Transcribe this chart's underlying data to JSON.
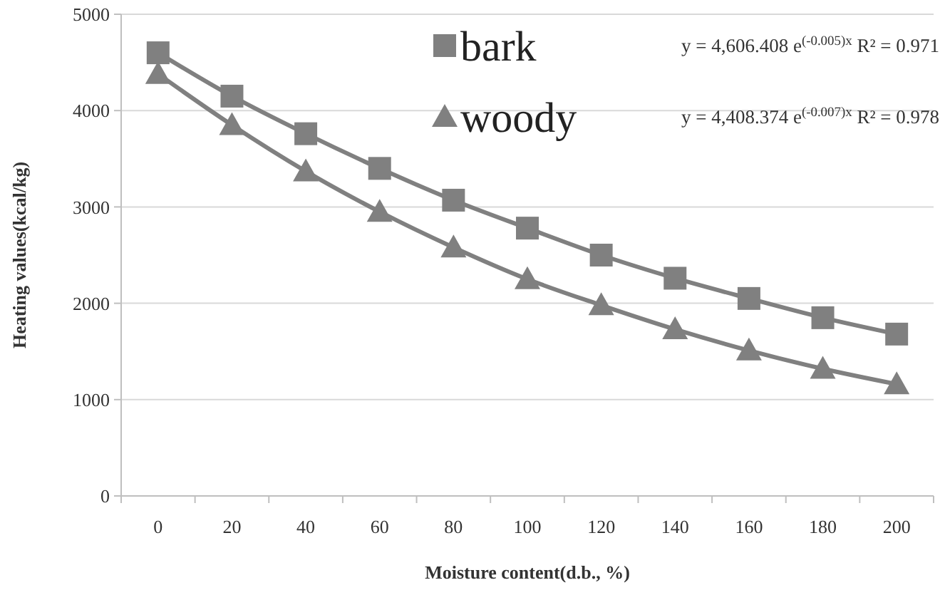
{
  "chart_data": {
    "type": "line",
    "xlabel": "Moisture content(d.b., %)",
    "ylabel": "Heating values(kcal/kg)",
    "categories": [
      "0",
      "20",
      "40",
      "60",
      "80",
      "100",
      "120",
      "140",
      "160",
      "180",
      "200"
    ],
    "series": [
      {
        "name": "bark",
        "color": "#808080",
        "marker": "square",
        "values": [
          4600,
          4150,
          3760,
          3400,
          3070,
          2780,
          2500,
          2260,
          2050,
          1850,
          1680
        ]
      },
      {
        "name": "woody",
        "color": "#808080",
        "marker": "triangle",
        "values": [
          4380,
          3850,
          3370,
          2950,
          2580,
          2250,
          1980,
          1730,
          1510,
          1320,
          1160
        ]
      }
    ],
    "ylim": [
      0,
      5000
    ],
    "yticks": [
      0,
      1000,
      2000,
      3000,
      4000,
      5000
    ],
    "grid": "y",
    "legend": "top right",
    "annotations": [
      "y = 4,606.408 e$^{(-0.005)x}$ R² = 0.971",
      "y = 4,408.374 e$^{(-0.007)x}$ R² = 0.978"
    ]
  }
}
